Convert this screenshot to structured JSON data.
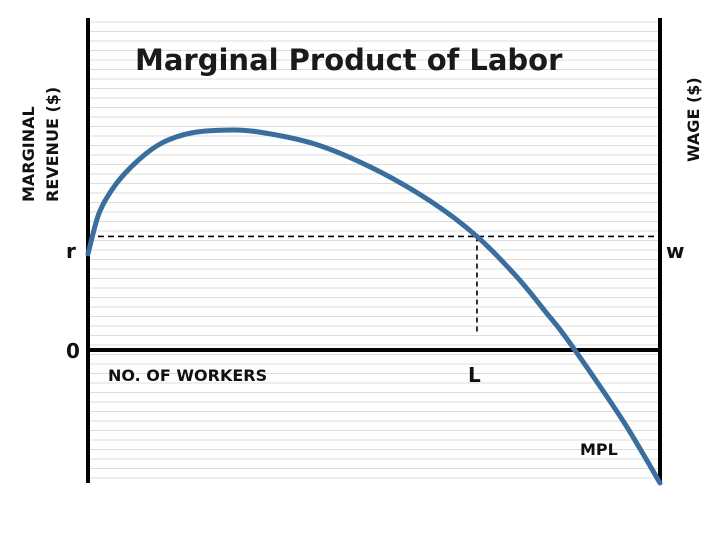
{
  "chart_data": {
    "type": "line",
    "title": "Marginal Product of Labor",
    "left_axis_label_line1": "MARGINAL",
    "left_axis_label_line2": "REVENUE ($)",
    "right_axis_label": "WAGE ($)",
    "x_axis_label": "NO. OF WORKERS",
    "zero_label": "0",
    "r_label": "r",
    "w_label": "w",
    "L_label": "L",
    "series": [
      {
        "name": "MPL",
        "color": "#3a6e9e",
        "points": [
          [
            0.0,
            0.82
          ],
          [
            0.02,
            1.25
          ],
          [
            0.05,
            1.55
          ],
          [
            0.09,
            1.8
          ],
          [
            0.13,
            1.97
          ],
          [
            0.18,
            2.07
          ],
          [
            0.24,
            2.1
          ],
          [
            0.3,
            2.08
          ],
          [
            0.4,
            1.95
          ],
          [
            0.5,
            1.7
          ],
          [
            0.6,
            1.36
          ],
          [
            0.68,
            1.0
          ],
          [
            0.75,
            0.58
          ],
          [
            0.8,
            0.22
          ],
          [
            0.83,
            0.0
          ],
          [
            0.88,
            -0.42
          ],
          [
            0.94,
            -0.95
          ],
          [
            1.0,
            -1.55
          ]
        ]
      }
    ],
    "reference": {
      "r_value": 1.0,
      "L_value": 0.68
    },
    "xlim": [
      0,
      1
    ],
    "ylim": [
      -1.55,
      3.26
    ],
    "grid": true,
    "colors": {
      "curve": "#3a6e9e",
      "axis": "#000000",
      "grid": "#dcdcdc"
    }
  }
}
